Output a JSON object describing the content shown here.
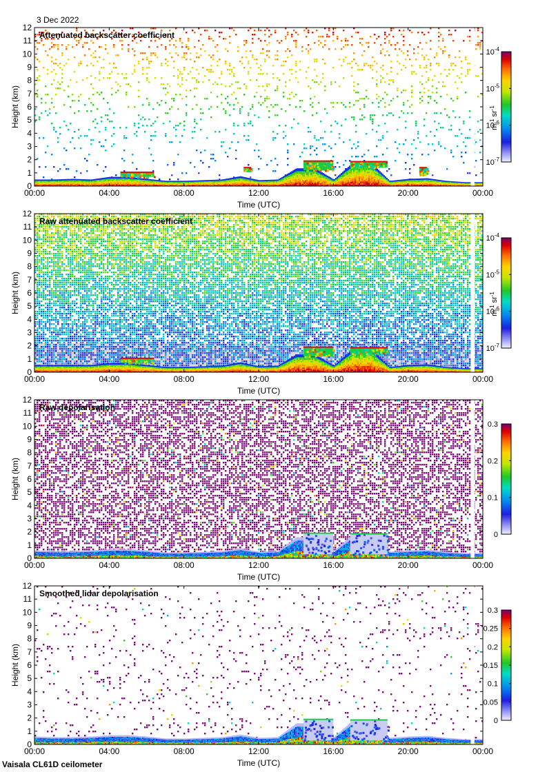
{
  "figure": {
    "date": "3 Dec 2022",
    "footer": "Vaisala CL61D ceilometer"
  },
  "colors": {
    "background": "#ffffff",
    "axis": "#000000",
    "noise_purple": "#7a0a78",
    "noise_white": "#ffffff",
    "data_gap": "#ffffff"
  },
  "icons": {
    "colorbar": "gradient-colorbar"
  },
  "chart_data": [
    {
      "type": "heatmap",
      "title": "Attenuated backscatter coefficient",
      "xlabel": "Time (UTC)",
      "ylabel": "Height (km)",
      "x_ticks": [
        "00:00",
        "04:00",
        "08:00",
        "12:00",
        "16:00",
        "20:00",
        "00:00"
      ],
      "xlim_hours": [
        0,
        24
      ],
      "y_ticks": [
        "0",
        "1",
        "2",
        "3",
        "4",
        "5",
        "6",
        "7",
        "8",
        "9",
        "10",
        "11",
        "12"
      ],
      "ylim_km": [
        0,
        12
      ],
      "colorbar": {
        "scale": "log",
        "range": [
          1e-07,
          0.0001
        ],
        "ticks": [
          {
            "base": "10",
            "exp": "-7",
            "value": 1e-07
          },
          {
            "base": "10",
            "exp": "-6",
            "value": 1e-06
          },
          {
            "base": "10",
            "exp": "-5",
            "value": 1e-05
          },
          {
            "base": "10",
            "exp": "-4",
            "value": 0.0001
          }
        ],
        "units": {
          "m": "m",
          "m_exp": "-1",
          "sr": " sr",
          "sr_exp": "-1"
        },
        "colormap": "rainbow"
      },
      "background": "#ffffff",
      "noise_density": 0.1,
      "noise_colors": "height_dependent",
      "data_gap_hours": [
        23.35,
        23.55
      ],
      "boundary_layer": {
        "hours": [
          0,
          1,
          2,
          3,
          4,
          5,
          6,
          7,
          8,
          9,
          10,
          11,
          12,
          13,
          14,
          15,
          16,
          17,
          18,
          19,
          20,
          21,
          22,
          23
        ],
        "top_km": [
          0.5,
          0.5,
          0.55,
          0.5,
          0.7,
          0.7,
          0.55,
          0.4,
          0.4,
          0.45,
          0.5,
          0.75,
          0.45,
          0.5,
          1.35,
          1.35,
          0.5,
          1.75,
          1.75,
          0.4,
          0.55,
          0.6,
          0.4,
          0.3
        ]
      },
      "cloud_features": [
        {
          "start_h": 14.4,
          "end_h": 16.0,
          "base_km": 1.2,
          "top_km": 1.9
        },
        {
          "start_h": 16.9,
          "end_h": 18.9,
          "base_km": 1.4,
          "top_km": 1.85
        },
        {
          "start_h": 4.6,
          "end_h": 6.4,
          "base_km": 0.7,
          "top_km": 1.05
        },
        {
          "start_h": 11.2,
          "end_h": 11.6,
          "base_km": 1.2,
          "top_km": 1.4
        },
        {
          "start_h": 20.6,
          "end_h": 21.0,
          "base_km": 0.9,
          "top_km": 1.4
        }
      ]
    },
    {
      "type": "heatmap",
      "title": "Raw attenuated backscatter coefficient",
      "xlabel": "Time (UTC)",
      "ylabel": "Height (km)",
      "x_ticks": [
        "00:00",
        "04:00",
        "08:00",
        "12:00",
        "16:00",
        "20:00",
        "00:00"
      ],
      "xlim_hours": [
        0,
        24
      ],
      "y_ticks": [
        "0",
        "1",
        "2",
        "3",
        "4",
        "5",
        "6",
        "7",
        "8",
        "9",
        "10",
        "11",
        "12"
      ],
      "ylim_km": [
        0,
        12
      ],
      "colorbar": {
        "scale": "log",
        "range": [
          1e-07,
          0.0001
        ],
        "ticks": [
          {
            "base": "10",
            "exp": "-7",
            "value": 1e-07
          },
          {
            "base": "10",
            "exp": "-6",
            "value": 1e-06
          },
          {
            "base": "10",
            "exp": "-5",
            "value": 1e-05
          },
          {
            "base": "10",
            "exp": "-4",
            "value": 0.0001
          }
        ],
        "units": {
          "m": "m",
          "m_exp": "-1",
          "sr": " sr",
          "sr_exp": "-1"
        },
        "colormap": "rainbow"
      },
      "background": "#ffffff",
      "noise_density": 0.75,
      "noise_colors": "height_dependent_dense",
      "data_gap_hours": [
        23.35,
        23.55
      ],
      "boundary_layer": {
        "hours": [
          0,
          1,
          2,
          3,
          4,
          5,
          6,
          7,
          8,
          9,
          10,
          11,
          12,
          13,
          14,
          15,
          16,
          17,
          18,
          19,
          20,
          21,
          22,
          23
        ],
        "top_km": [
          0.55,
          0.55,
          0.55,
          0.55,
          0.7,
          0.7,
          0.55,
          0.4,
          0.4,
          0.45,
          0.5,
          0.75,
          0.45,
          0.5,
          1.35,
          1.35,
          0.5,
          1.75,
          1.75,
          0.4,
          0.55,
          0.6,
          0.4,
          0.3
        ]
      },
      "cloud_features": [
        {
          "start_h": 14.4,
          "end_h": 16.0,
          "base_km": 1.2,
          "top_km": 1.9
        },
        {
          "start_h": 16.9,
          "end_h": 18.9,
          "base_km": 1.4,
          "top_km": 1.85
        },
        {
          "start_h": 4.6,
          "end_h": 6.4,
          "base_km": 0.7,
          "top_km": 1.05
        }
      ]
    },
    {
      "type": "heatmap",
      "title": "Raw depolarisation",
      "xlabel": "Time (UTC)",
      "ylabel": "Height (km)",
      "x_ticks": [
        "00:00",
        "04:00",
        "08:00",
        "12:00",
        "16:00",
        "20:00",
        "00:00"
      ],
      "xlim_hours": [
        0,
        24
      ],
      "y_ticks": [
        "0",
        "1",
        "2",
        "3",
        "4",
        "5",
        "6",
        "7",
        "8",
        "9",
        "10",
        "11",
        "12"
      ],
      "ylim_km": [
        0,
        12
      ],
      "colorbar": {
        "scale": "linear",
        "range": [
          0,
          0.3
        ],
        "ticks": [
          {
            "label": "0",
            "value": 0
          },
          {
            "label": "0.1",
            "value": 0.1
          },
          {
            "label": "0.2",
            "value": 0.2
          },
          {
            "label": "0.3",
            "value": 0.3
          }
        ],
        "colormap": "rainbow"
      },
      "background": "#ffffff",
      "noise_density": 0.55,
      "noise_colors": "purple",
      "data_gap_hours": [
        23.35,
        23.55
      ],
      "boundary_layer": {
        "hours": [
          0,
          1,
          2,
          3,
          4,
          5,
          6,
          7,
          8,
          9,
          10,
          11,
          12,
          13,
          14,
          15,
          16,
          17,
          18,
          19,
          20,
          21,
          22,
          23
        ],
        "top_km": [
          0.6,
          0.55,
          0.55,
          0.6,
          0.7,
          0.7,
          0.6,
          0.45,
          0.45,
          0.5,
          0.55,
          0.75,
          0.5,
          0.55,
          1.6,
          1.6,
          0.55,
          1.8,
          1.8,
          0.5,
          0.6,
          0.65,
          0.5,
          0.4
        ]
      },
      "cloud_features": [
        {
          "start_h": 14.4,
          "end_h": 16.0,
          "base_km": 0.3,
          "top_km": 1.9
        },
        {
          "start_h": 16.9,
          "end_h": 18.9,
          "base_km": 0.3,
          "top_km": 1.85
        }
      ]
    },
    {
      "type": "heatmap",
      "title": "Smoothed lidar depolarisation",
      "xlabel": "Time (UTC)",
      "ylabel": "Height (km)",
      "x_ticks": [
        "00:00",
        "04:00",
        "08:00",
        "12:00",
        "16:00",
        "20:00",
        "00:00"
      ],
      "xlim_hours": [
        0,
        24
      ],
      "y_ticks": [
        "0",
        "1",
        "2",
        "3",
        "4",
        "5",
        "6",
        "7",
        "8",
        "9",
        "10",
        "11",
        "12"
      ],
      "ylim_km": [
        0,
        12
      ],
      "colorbar": {
        "scale": "linear",
        "range": [
          0,
          0.3
        ],
        "ticks": [
          {
            "label": "0",
            "value": 0
          },
          {
            "label": "0.05",
            "value": 0.05
          },
          {
            "label": "0.1",
            "value": 0.1
          },
          {
            "label": "0.15",
            "value": 0.15
          },
          {
            "label": "0.2",
            "value": 0.2
          },
          {
            "label": "0.25",
            "value": 0.25
          },
          {
            "label": "0.3",
            "value": 0.3
          }
        ],
        "colormap": "rainbow"
      },
      "background": "#ffffff",
      "noise_density": 0.05,
      "noise_colors": "purple",
      "data_gap_hours": [
        23.35,
        23.55
      ],
      "boundary_layer": {
        "hours": [
          0,
          1,
          2,
          3,
          4,
          5,
          6,
          7,
          8,
          9,
          10,
          11,
          12,
          13,
          14,
          15,
          16,
          17,
          18,
          19,
          20,
          21,
          22,
          23
        ],
        "top_km": [
          0.6,
          0.55,
          0.55,
          0.6,
          0.7,
          0.7,
          0.6,
          0.45,
          0.45,
          0.5,
          0.55,
          0.75,
          0.5,
          0.55,
          1.6,
          1.6,
          0.55,
          1.8,
          1.8,
          0.5,
          0.6,
          0.65,
          0.5,
          0.4
        ]
      },
      "cloud_features": [
        {
          "start_h": 14.4,
          "end_h": 16.0,
          "base_km": 0.3,
          "top_km": 1.9
        },
        {
          "start_h": 16.9,
          "end_h": 18.9,
          "base_km": 0.3,
          "top_km": 1.85
        }
      ]
    }
  ]
}
